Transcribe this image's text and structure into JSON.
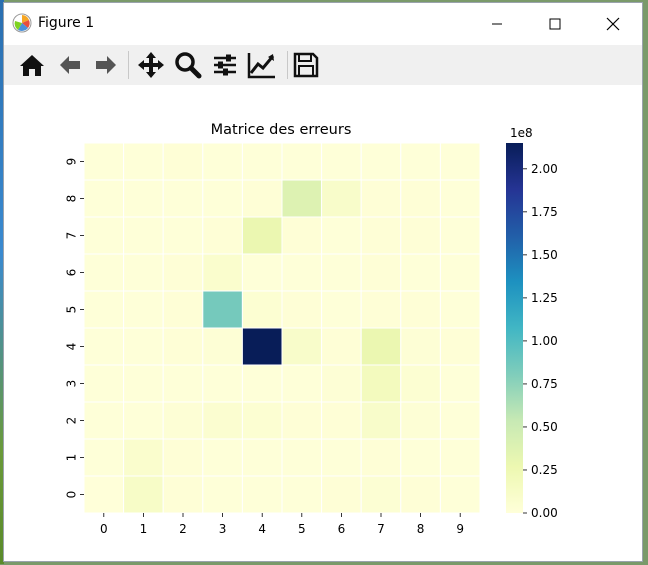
{
  "window": {
    "title": "Figure 1"
  },
  "toolbar": {
    "buttons": [
      "home-icon",
      "back-icon",
      "forward-icon",
      "pan-icon",
      "zoom-icon",
      "subplots-icon",
      "edit-axis-icon",
      "save-icon"
    ]
  },
  "chart_data": {
    "type": "heatmap",
    "title": "Matrice des erreurs",
    "x_categories": [
      "0",
      "1",
      "2",
      "3",
      "4",
      "5",
      "6",
      "7",
      "8",
      "9"
    ],
    "y_categories": [
      "0",
      "1",
      "2",
      "3",
      "4",
      "5",
      "6",
      "7",
      "8",
      "9"
    ],
    "values": [
      [
        0.0,
        12000000.0,
        2000000.0,
        1000000.0,
        1000000.0,
        1000000.0,
        2000000.0,
        4000000.0,
        2000000.0,
        1000000.0
      ],
      [
        1000000.0,
        8000000.0,
        2000000.0,
        1000000.0,
        1000000.0,
        1000000.0,
        1000000.0,
        2000000.0,
        1000000.0,
        1000000.0
      ],
      [
        1000000.0,
        1000000.0,
        3000000.0,
        6000000.0,
        5000000.0,
        2000000.0,
        2000000.0,
        10000000.0,
        3000000.0,
        1000000.0
      ],
      [
        1000000.0,
        1000000.0,
        1000000.0,
        1000000.0,
        1000000.0,
        1000000.0,
        3000000.0,
        18000000.0,
        5000000.0,
        1000000.0
      ],
      [
        1000000.0,
        1000000.0,
        2000000.0,
        3000000.0,
        215000000.0,
        10000000.0,
        2000000.0,
        28000000.0,
        3000000.0,
        2000000.0
      ],
      [
        1000000.0,
        1000000.0,
        2000000.0,
        85000000.0,
        5000000.0,
        2000000.0,
        1000000.0,
        2000000.0,
        2000000.0,
        1000000.0
      ],
      [
        1000000.0,
        1000000.0,
        2000000.0,
        8000000.0,
        1000000.0,
        1000000.0,
        1000000.0,
        2000000.0,
        1000000.0,
        1000000.0
      ],
      [
        1000000.0,
        1000000.0,
        1000000.0,
        2000000.0,
        28000000.0,
        2000000.0,
        1000000.0,
        2000000.0,
        2000000.0,
        1000000.0
      ],
      [
        1000000.0,
        1000000.0,
        1000000.0,
        1000000.0,
        2000000.0,
        38000000.0,
        10000000.0,
        2000000.0,
        2000000.0,
        1000000.0
      ],
      [
        1000000.0,
        1000000.0,
        2000000.0,
        1000000.0,
        1000000.0,
        1000000.0,
        1000000.0,
        1000000.0,
        1000000.0,
        1000000.0
      ]
    ],
    "value_range": [
      0,
      215000000.0
    ],
    "colormap": "YlGnBu",
    "colorbar": {
      "ticks": [
        0.0,
        0.25,
        0.5,
        0.75,
        1.0,
        1.25,
        1.5,
        1.75,
        2.0
      ],
      "tick_labels": [
        "0.00",
        "0.25",
        "0.50",
        "0.75",
        "1.00",
        "1.25",
        "1.50",
        "1.75",
        "2.00"
      ],
      "offset_label": "1e8"
    }
  }
}
